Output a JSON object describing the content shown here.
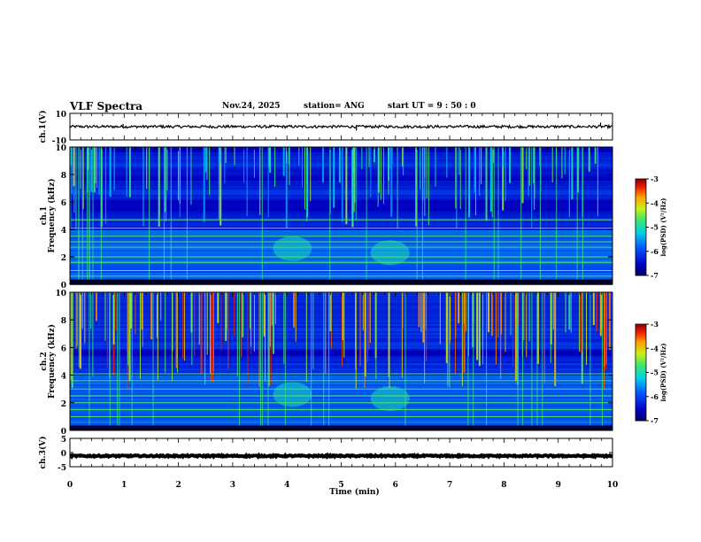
{
  "header": {
    "title": "VLF Spectra",
    "date": "Nov.24, 2025",
    "station": "station= ANG",
    "start": "start UT =  9 : 50 : 0"
  },
  "chart_data": [
    {
      "type": "line",
      "panel": "ch1-waveform",
      "ylabel": "ch.1(V)",
      "ylim": [
        -10,
        10
      ],
      "yticks": [
        "10",
        "-10"
      ],
      "baseline": 0,
      "noise_amplitude": 1,
      "spikes": [
        {
          "x": 0.98,
          "y": 2
        },
        {
          "x": 1.68,
          "y": 1.5
        },
        {
          "x": 5.28,
          "y": -3
        },
        {
          "x": 9.78,
          "y": 3
        }
      ]
    },
    {
      "type": "heatmap",
      "panel": "ch1-spectrogram",
      "ylabel": "ch.1\nFrequency (kHz)",
      "xlim": [
        0,
        10
      ],
      "ylim": [
        0,
        10
      ],
      "yticks": [
        "0",
        "2",
        "4",
        "6",
        "8",
        "10"
      ],
      "colorbar": {
        "label": "log(PSD) (V²/Hz)",
        "range": [
          -7,
          -3
        ],
        "ticks": [
          "-3",
          "-4",
          "-5",
          "-6",
          "-7"
        ]
      },
      "hum_lines_khz": [
        0.6,
        1.0,
        1.6,
        2.0,
        2.7,
        3.1,
        3.5,
        4.1,
        4.7
      ],
      "noise_bursts_min": [
        [
          4.1,
          2.6
        ],
        [
          5.9,
          2.3
        ]
      ]
    },
    {
      "type": "heatmap",
      "panel": "ch2-spectrogram",
      "ylabel": "ch.2\nFrequency (kHz)",
      "xlim": [
        0,
        10
      ],
      "ylim": [
        0,
        10
      ],
      "yticks": [
        "0",
        "2",
        "4",
        "6",
        "8",
        "10"
      ],
      "colorbar": {
        "label": "log(PSD) (V²/Hz)",
        "range": [
          -7,
          -3
        ],
        "ticks": [
          "-3",
          "-4",
          "-5",
          "-6",
          "-7"
        ]
      },
      "hum_lines_khz": [
        1.0,
        1.5,
        2.0,
        2.5,
        3.0,
        3.6,
        4.1
      ],
      "noise_bursts_min": [
        [
          4.1,
          2.6
        ],
        [
          5.9,
          2.3
        ]
      ]
    },
    {
      "type": "line",
      "panel": "ch3-waveform",
      "ylabel": "ch.3(V)",
      "ylim": [
        -5,
        5
      ],
      "yticks": [
        "5",
        "0",
        "-5"
      ],
      "baseline": -1.2,
      "noise_amplitude": 0.25
    }
  ],
  "xaxis": {
    "label": "Time (min)",
    "range": [
      0,
      10
    ],
    "ticks": [
      "0",
      "1",
      "2",
      "3",
      "4",
      "5",
      "6",
      "7",
      "8",
      "9",
      "10"
    ]
  }
}
